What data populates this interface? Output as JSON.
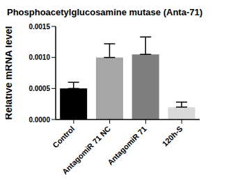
{
  "chart_data": {
    "type": "bar",
    "title": "Phosphoacetylglucosamine mutase (Anta-71)",
    "y_label": "Relative mRNA level",
    "categories": [
      "Control",
      "AntagomiR 71 NC",
      "AntagomiR 71",
      "120h-S"
    ],
    "values": [
      0.0005,
      0.001,
      0.00105,
      0.0002
    ],
    "errors": [
      0.0001,
      0.00022,
      0.00028,
      8e-05
    ],
    "colors": [
      "#000000",
      "#a6a6a6",
      "#7f7f7f",
      "#d9d9d9"
    ],
    "ylim": [
      0,
      0.0015
    ],
    "yticks": [
      {
        "value": 0,
        "label": "0.0000"
      },
      {
        "value": 0.0005,
        "label": "0.0005"
      },
      {
        "value": 0.001,
        "label": "0.0010"
      },
      {
        "value": 0.0015,
        "label": "0.0015"
      }
    ],
    "grid": false
  }
}
